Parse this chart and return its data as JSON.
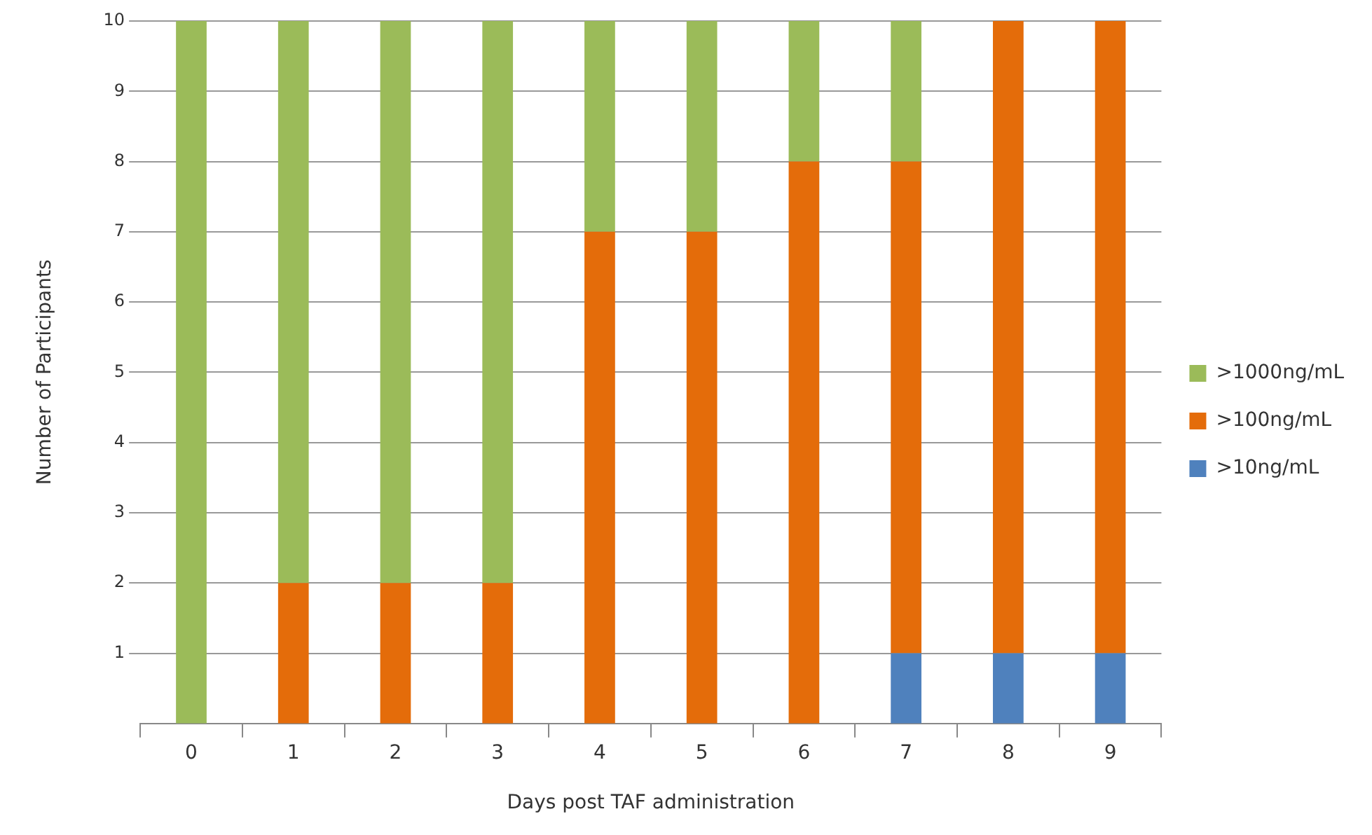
{
  "chart_data": {
    "type": "bar",
    "stacked": true,
    "xlabel": "Days post TAF administration",
    "ylabel": "Number of Participants",
    "categories": [
      "0",
      "1",
      "2",
      "3",
      "4",
      "5",
      "6",
      "7",
      "8",
      "9"
    ],
    "series": [
      {
        "name": ">10ng/mL",
        "color": "#4f81bd",
        "values": [
          null,
          null,
          null,
          null,
          null,
          null,
          null,
          1,
          1,
          1
        ]
      },
      {
        "name": ">100ng/mL",
        "color": "#e46c0a",
        "values": [
          null,
          2,
          2,
          2,
          7,
          7,
          8,
          7,
          9,
          9
        ]
      },
      {
        "name": ">1000ng/mL",
        "color": "#9bbb59",
        "values": [
          10,
          8,
          8,
          8,
          3,
          3,
          2,
          2,
          null,
          null
        ]
      }
    ],
    "ylim": [
      0,
      10
    ],
    "yticks": [
      1,
      2,
      3,
      4,
      5,
      6,
      7,
      8,
      9,
      10
    ],
    "grid": "y",
    "legend": "right"
  }
}
